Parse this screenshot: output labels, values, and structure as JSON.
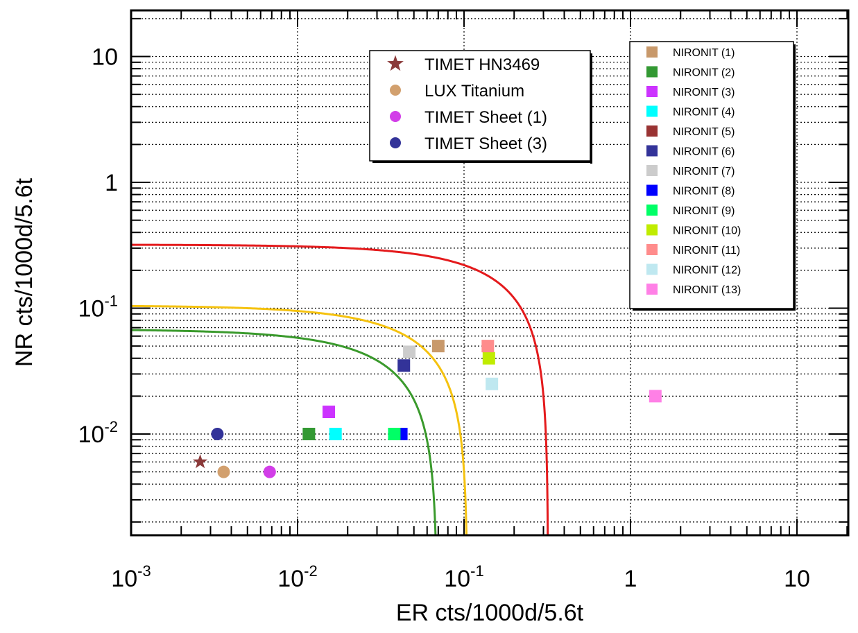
{
  "chart_data": {
    "type": "scatter",
    "xlabel": "ER cts/1000d/5.6t",
    "ylabel": "NR cts/1000d/5.6t",
    "x_scale": "log",
    "y_scale": "log",
    "xlim": [
      0.001,
      25
    ],
    "ylim": [
      0.0016,
      25
    ],
    "grid": true,
    "x_ticks": [
      {
        "value": 0.001,
        "base": "10",
        "exp": "-3"
      },
      {
        "value": 0.01,
        "base": "10",
        "exp": "-2"
      },
      {
        "value": 0.1,
        "base": "10",
        "exp": "-1"
      },
      {
        "value": 1,
        "base": "1",
        "exp": ""
      },
      {
        "value": 10,
        "base": "10",
        "exp": ""
      }
    ],
    "y_ticks": [
      {
        "value": 0.01,
        "base": "10",
        "exp": "-2"
      },
      {
        "value": 0.1,
        "base": "10",
        "exp": "-1"
      },
      {
        "value": 1,
        "base": "1",
        "exp": ""
      },
      {
        "value": 10,
        "base": "10",
        "exp": ""
      }
    ],
    "curves": [
      {
        "color": "#e41a1c",
        "x_asymptote": 0.32,
        "y_asymptote": 0.32
      },
      {
        "color": "#f5c20f",
        "x_asymptote": 0.105,
        "y_asymptote": 0.105
      },
      {
        "color": "#3a9a2c",
        "x_asymptote": 0.069,
        "y_asymptote": 0.068
      }
    ],
    "legend_top": {
      "placement": "top-center",
      "entries": [
        {
          "label": "TIMET HN3469",
          "marker": "star",
          "color": "#8b3a3a"
        },
        {
          "label": "LUX Titanium",
          "marker": "circle",
          "color": "#d2a06e"
        },
        {
          "label": "TIMET Sheet (1)",
          "marker": "circle",
          "color": "#d23ee8"
        },
        {
          "label": "TIMET Sheet (3)",
          "marker": "circle",
          "color": "#333399"
        }
      ]
    },
    "legend_right": {
      "placement": "top-right",
      "entries": [
        {
          "label": "NIRONIT (1)",
          "color": "#c8996b"
        },
        {
          "label": "NIRONIT (2)",
          "color": "#339933"
        },
        {
          "label": "NIRONIT (3)",
          "color": "#cc33ff"
        },
        {
          "label": "NIRONIT (4)",
          "color": "#00ffff"
        },
        {
          "label": "NIRONIT (5)",
          "color": "#993333"
        },
        {
          "label": "NIRONIT (6)",
          "color": "#333399"
        },
        {
          "label": "NIRONIT (7)",
          "color": "#cccccc"
        },
        {
          "label": "NIRONIT (8)",
          "color": "#0000ff"
        },
        {
          "label": "NIRONIT (9)",
          "color": "#00ff66"
        },
        {
          "label": "NIRONIT (10)",
          "color": "#c0ec00"
        },
        {
          "label": "NIRONIT (11)",
          "color": "#ff8c8c"
        },
        {
          "label": "NIRONIT (12)",
          "color": "#bfe8f0"
        },
        {
          "label": "NIRONIT (13)",
          "color": "#ff80e6"
        }
      ]
    },
    "series": [
      {
        "name": "TIMET HN3469",
        "marker": "star",
        "color": "#8b3a3a",
        "points": [
          [
            0.0026,
            0.006
          ]
        ]
      },
      {
        "name": "LUX Titanium",
        "marker": "circle",
        "color": "#d2a06e",
        "points": [
          [
            0.0036,
            0.005
          ]
        ]
      },
      {
        "name": "TIMET Sheet (1)",
        "marker": "circle",
        "color": "#d23ee8",
        "points": [
          [
            0.0068,
            0.005
          ]
        ]
      },
      {
        "name": "TIMET Sheet (3)",
        "marker": "circle",
        "color": "#333399",
        "points": [
          [
            0.0033,
            0.01
          ]
        ]
      },
      {
        "name": "NIRONIT (1)",
        "marker": "square",
        "color": "#c8996b",
        "points": [
          [
            0.07,
            0.05
          ]
        ]
      },
      {
        "name": "NIRONIT (2)",
        "marker": "square",
        "color": "#339933",
        "points": [
          [
            0.0117,
            0.01
          ]
        ]
      },
      {
        "name": "NIRONIT (3)",
        "marker": "square",
        "color": "#cc33ff",
        "points": [
          [
            0.0154,
            0.015
          ]
        ]
      },
      {
        "name": "NIRONIT (4)",
        "marker": "square",
        "color": "#00ffff",
        "points": [
          [
            0.0169,
            0.01
          ]
        ]
      },
      {
        "name": "NIRONIT (5)",
        "marker": "square",
        "color": "#993333",
        "points": []
      },
      {
        "name": "NIRONIT (6)",
        "marker": "square",
        "color": "#333399",
        "points": [
          [
            0.0435,
            0.035
          ]
        ]
      },
      {
        "name": "NIRONIT (7)",
        "marker": "square",
        "color": "#cccccc",
        "points": [
          [
            0.0469,
            0.045
          ]
        ]
      },
      {
        "name": "NIRONIT (8)",
        "marker": "square",
        "color": "#0000ff",
        "points": [
          [
            0.042,
            0.01
          ]
        ]
      },
      {
        "name": "NIRONIT (9)",
        "marker": "square",
        "color": "#00ff66",
        "points": [
          [
            0.0381,
            0.01
          ]
        ]
      },
      {
        "name": "NIRONIT (10)",
        "marker": "square",
        "color": "#c0ec00",
        "points": [
          [
            0.141,
            0.04
          ]
        ]
      },
      {
        "name": "NIRONIT (11)",
        "marker": "square",
        "color": "#ff8c8c",
        "points": [
          [
            0.139,
            0.05
          ]
        ]
      },
      {
        "name": "NIRONIT (12)",
        "marker": "square",
        "color": "#bfe8f0",
        "points": [
          [
            0.147,
            0.025
          ]
        ]
      },
      {
        "name": "NIRONIT (13)",
        "marker": "square",
        "color": "#ff80e6",
        "points": [
          [
            1.41,
            0.02
          ]
        ]
      }
    ]
  }
}
